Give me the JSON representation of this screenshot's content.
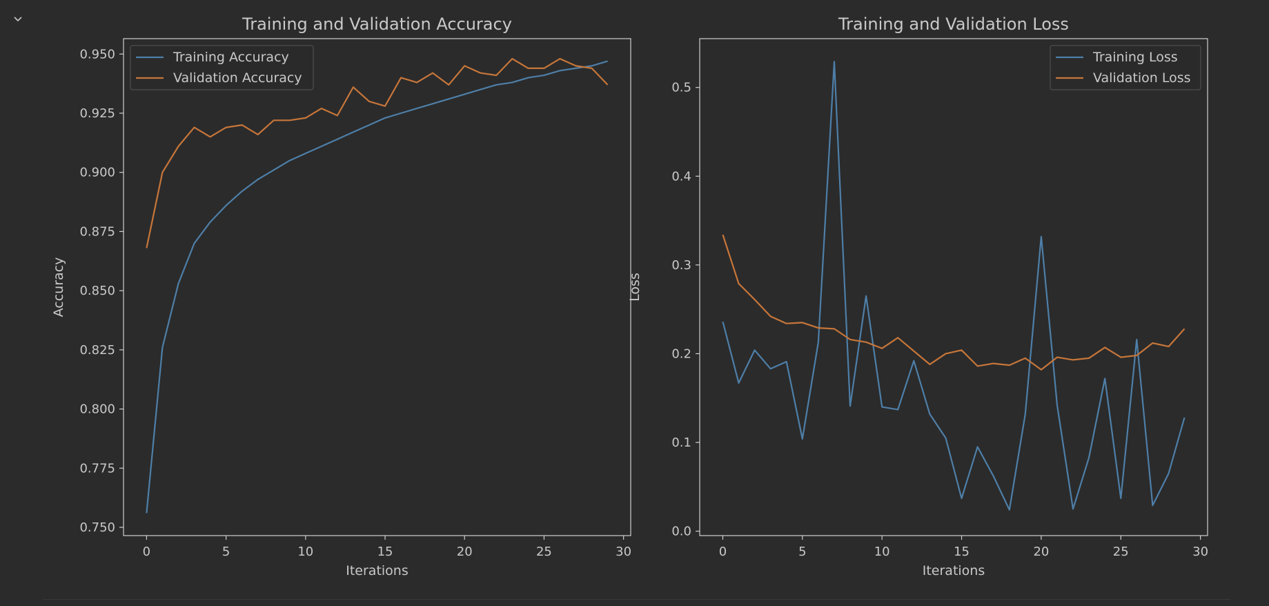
{
  "ui": {
    "collapse_icon": "chevron-down-icon"
  },
  "colors": {
    "background": "#2b2b2b",
    "axes_face": "#2b2b2b",
    "spine": "#d0d0d0",
    "text": "#c9c9c9",
    "training": "#4e7fa8",
    "validation": "#c7763a"
  },
  "chart_data": [
    {
      "type": "line",
      "title": "Training and Validation Accuracy",
      "xlabel": "Iterations",
      "ylabel": "Accuracy",
      "xlim": [
        -1.45,
        30.45
      ],
      "ylim": [
        0.7465,
        0.9565
      ],
      "xticks": [
        0,
        5,
        10,
        15,
        20,
        25,
        30
      ],
      "xtick_labels": [
        "0",
        "5",
        "10",
        "15",
        "20",
        "25",
        "30"
      ],
      "yticks": [
        0.75,
        0.775,
        0.8,
        0.825,
        0.85,
        0.875,
        0.9,
        0.925,
        0.95
      ],
      "ytick_labels": [
        "0.750",
        "0.775",
        "0.800",
        "0.825",
        "0.850",
        "0.875",
        "0.900",
        "0.925",
        "0.950"
      ],
      "grid": false,
      "legend_position": "upper left",
      "x": [
        0,
        1,
        2,
        3,
        4,
        5,
        6,
        7,
        8,
        9,
        10,
        11,
        12,
        13,
        14,
        15,
        16,
        17,
        18,
        19,
        20,
        21,
        22,
        23,
        24,
        25,
        26,
        27,
        28,
        29
      ],
      "series": [
        {
          "name": "Training Accuracy",
          "color": "#4e7fa8",
          "values": [
            0.756,
            0.826,
            0.853,
            0.87,
            0.879,
            0.886,
            0.892,
            0.897,
            0.901,
            0.905,
            0.908,
            0.911,
            0.914,
            0.917,
            0.92,
            0.923,
            0.925,
            0.927,
            0.929,
            0.931,
            0.933,
            0.935,
            0.937,
            0.938,
            0.94,
            0.941,
            0.943,
            0.944,
            0.945,
            0.947
          ]
        },
        {
          "name": "Validation Accuracy",
          "color": "#c7763a",
          "values": [
            0.868,
            0.9,
            0.911,
            0.919,
            0.915,
            0.919,
            0.92,
            0.916,
            0.922,
            0.922,
            0.923,
            0.927,
            0.924,
            0.936,
            0.93,
            0.928,
            0.94,
            0.938,
            0.942,
            0.937,
            0.945,
            0.942,
            0.941,
            0.948,
            0.944,
            0.944,
            0.948,
            0.945,
            0.944,
            0.937
          ]
        }
      ]
    },
    {
      "type": "line",
      "title": "Training and Validation Loss",
      "xlabel": "Iterations",
      "ylabel": "Loss",
      "xlim": [
        -1.45,
        30.45
      ],
      "ylim": [
        -0.005,
        0.555
      ],
      "xticks": [
        0,
        5,
        10,
        15,
        20,
        25,
        30
      ],
      "xtick_labels": [
        "0",
        "5",
        "10",
        "15",
        "20",
        "25",
        "30"
      ],
      "yticks": [
        0.0,
        0.1,
        0.2,
        0.3,
        0.4,
        0.5
      ],
      "ytick_labels": [
        "0.0",
        "0.1",
        "0.2",
        "0.3",
        "0.4",
        "0.5"
      ],
      "grid": false,
      "legend_position": "upper right",
      "x": [
        0,
        1,
        2,
        3,
        4,
        5,
        6,
        7,
        8,
        9,
        10,
        11,
        12,
        13,
        14,
        15,
        16,
        17,
        18,
        19,
        20,
        21,
        22,
        23,
        24,
        25,
        26,
        27,
        28,
        29
      ],
      "series": [
        {
          "name": "Training Loss",
          "color": "#4e7fa8",
          "values": [
            0.236,
            0.167,
            0.204,
            0.183,
            0.191,
            0.104,
            0.213,
            0.529,
            0.141,
            0.265,
            0.14,
            0.137,
            0.192,
            0.132,
            0.105,
            0.037,
            0.095,
            0.062,
            0.024,
            0.132,
            0.332,
            0.142,
            0.025,
            0.083,
            0.172,
            0.037,
            0.216,
            0.029,
            0.065,
            0.128
          ]
        },
        {
          "name": "Validation Loss",
          "color": "#c7763a",
          "values": [
            0.334,
            0.279,
            0.261,
            0.242,
            0.234,
            0.235,
            0.229,
            0.228,
            0.216,
            0.213,
            0.206,
            0.218,
            0.203,
            0.188,
            0.2,
            0.204,
            0.186,
            0.189,
            0.187,
            0.195,
            0.182,
            0.196,
            0.193,
            0.195,
            0.207,
            0.196,
            0.198,
            0.212,
            0.208,
            0.228
          ]
        }
      ]
    }
  ]
}
